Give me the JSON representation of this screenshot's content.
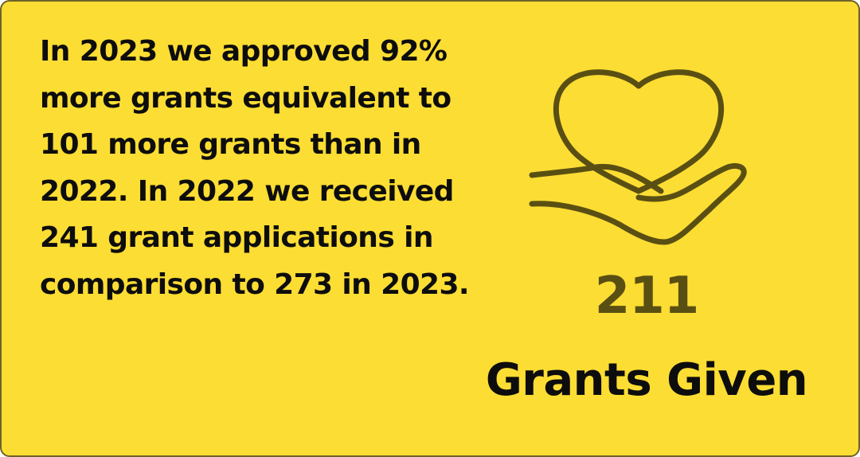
{
  "card": {
    "background_color": "#fcdd33",
    "border_color": "#6e6229",
    "body_text": "In 2023 we approved 92% more grants equivalent to 101 more grants than in 2022. In 2022 we received 241 grant applications in comparison to 273 in 2023."
  },
  "stat": {
    "icon": "heart-in-hand-icon",
    "icon_color": "#5a4f13",
    "number": "211",
    "label": "Grants Given"
  }
}
